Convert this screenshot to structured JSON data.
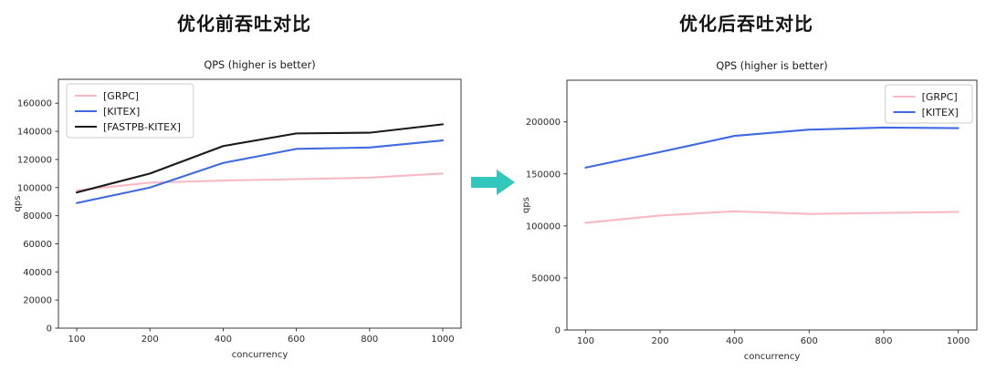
{
  "figures": [
    {
      "heading": "优化前吞吐对比"
    },
    {
      "heading": "优化后吞吐对比"
    }
  ],
  "arrow": {
    "name": "transition-arrow",
    "color": "#33C6BC"
  },
  "chart_data": [
    {
      "type": "line",
      "title": "QPS (higher is better)",
      "xlabel": "concurrency",
      "ylabel": "qps",
      "categories": [
        "100",
        "200",
        "400",
        "600",
        "800",
        "1000"
      ],
      "y_ticks": [
        0,
        20000,
        40000,
        60000,
        80000,
        100000,
        120000,
        140000,
        160000
      ],
      "ylim": [
        0,
        177000
      ],
      "grid": false,
      "legend_position": "top-left",
      "series": [
        {
          "name": "[GRPC]",
          "color": "#F7B9C4",
          "values": [
            98000,
            103500,
            105000,
            106000,
            107000,
            110000
          ]
        },
        {
          "name": "[KITEX]",
          "color": "#4169E1",
          "values": [
            89000,
            100000,
            117500,
            127500,
            128500,
            133500
          ]
        },
        {
          "name": "[FASTPB-KITEX]",
          "color": "#1A1A1A",
          "values": [
            96500,
            110000,
            129500,
            138500,
            139000,
            145000
          ]
        }
      ]
    },
    {
      "type": "line",
      "title": "QPS (higher is better)",
      "xlabel": "concurrency",
      "ylabel": "qps",
      "categories": [
        "100",
        "200",
        "400",
        "600",
        "800",
        "1000"
      ],
      "y_ticks": [
        0,
        50000,
        100000,
        150000,
        200000
      ],
      "ylim": [
        0,
        240000
      ],
      "grid": false,
      "legend_position": "top-right",
      "series": [
        {
          "name": "[GRPC]",
          "color": "#F7B9C4",
          "values": [
            103000,
            110000,
            114000,
            111500,
            112500,
            113500
          ]
        },
        {
          "name": "[KITEX]",
          "color": "#4169E1",
          "values": [
            156000,
            171000,
            186500,
            192500,
            194500,
            194000
          ]
        }
      ]
    }
  ]
}
